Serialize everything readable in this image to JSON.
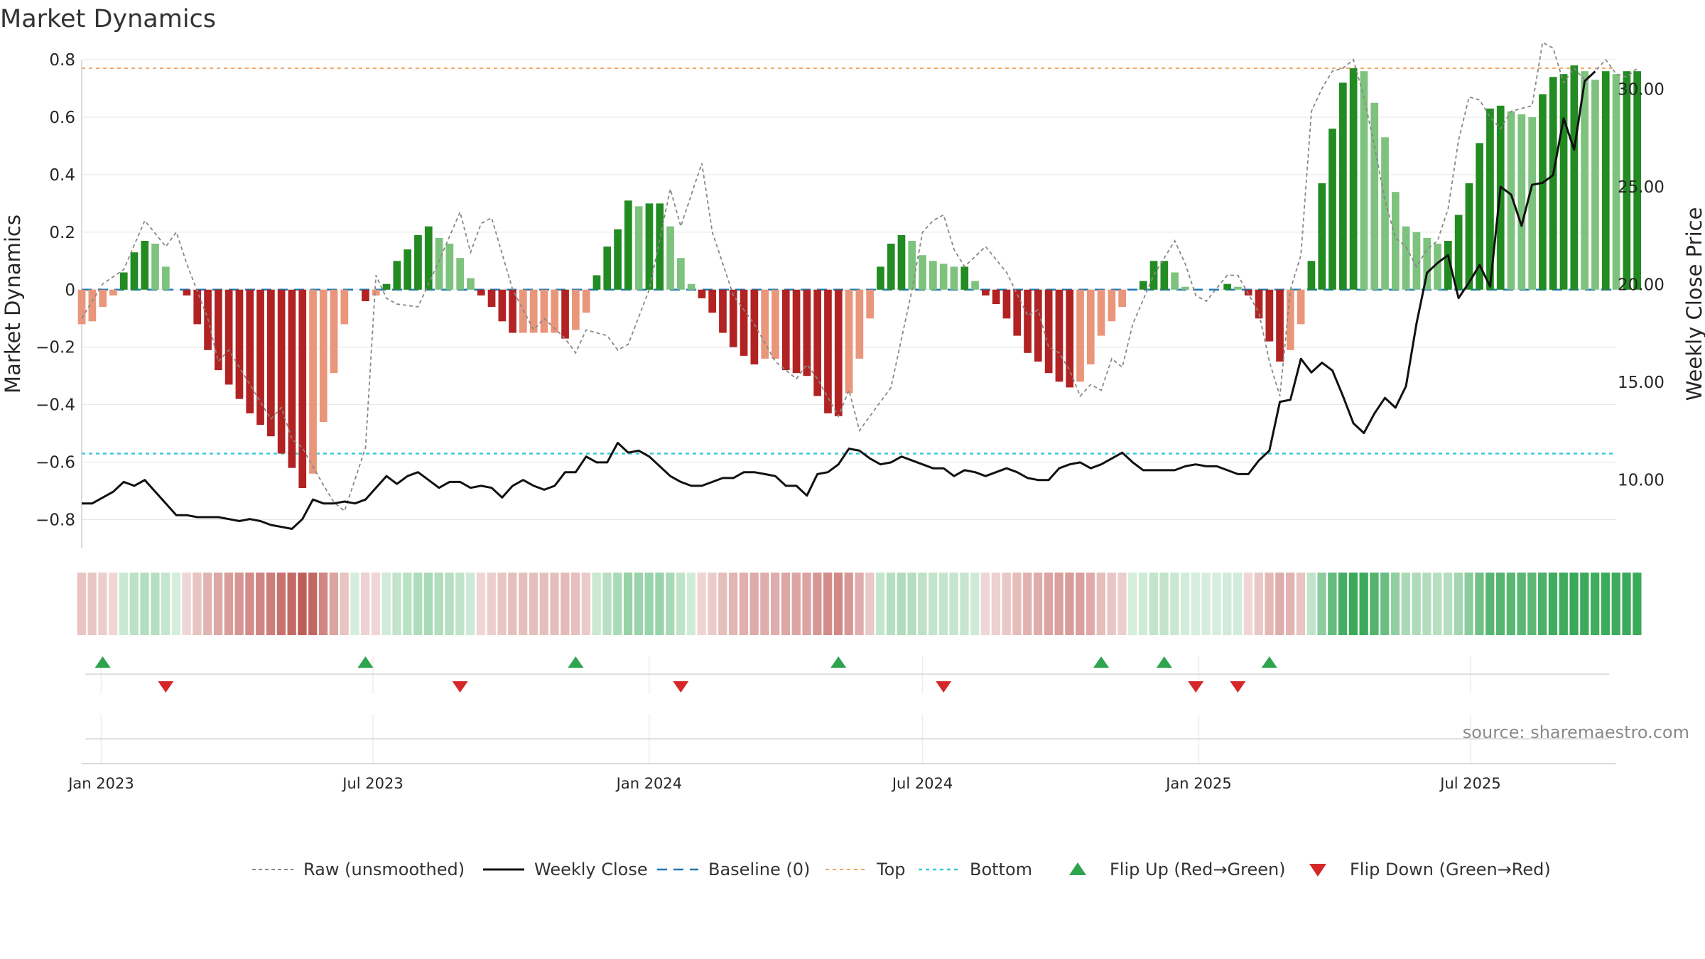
{
  "title": "Market Dynamics",
  "source": "source: sharemaestro.com",
  "chart_data": {
    "type": "bar",
    "title": "Market Dynamics",
    "ylabel_left": "Market Dynamics",
    "ylabel_right": "Weekly Close Price",
    "ylim_left": [
      -0.9,
      0.8
    ],
    "ylim_right": [
      6.5,
      31.5
    ],
    "y_ticks_left": [
      "0.8",
      "0.6",
      "0.4",
      "0.2",
      "0",
      "−0.2",
      "−0.4",
      "−0.6",
      "−0.8"
    ],
    "y_tick_values_left": [
      0.8,
      0.6,
      0.4,
      0.2,
      0,
      -0.2,
      -0.4,
      -0.6,
      -0.8
    ],
    "y_ticks_right": [
      "30.00",
      "25.00",
      "20.00",
      "15.00",
      "10.00"
    ],
    "y_tick_values_right": [
      30,
      25,
      20,
      15,
      10
    ],
    "x_start": "2022-12-19",
    "x_end": "2025-10-06",
    "x_ticks": [
      {
        "label": "Jan 2023",
        "date": "2023-01-01"
      },
      {
        "label": "Jul 2023",
        "date": "2023-07-01"
      },
      {
        "label": "Jan 2024",
        "date": "2024-01-01"
      },
      {
        "label": "Jul 2024",
        "date": "2024-07-01"
      },
      {
        "label": "Jan 2025",
        "date": "2025-01-01"
      },
      {
        "label": "Jul 2025",
        "date": "2025-07-01"
      }
    ],
    "reference_lines": {
      "baseline": 0,
      "top": 0.77,
      "bottom": -0.57
    },
    "colors": {
      "strong_green": "#228B22",
      "light_green": "#7DC27D",
      "strong_red": "#B22222",
      "light_red": "#E9967A",
      "raw": "#888888",
      "close": "#111111",
      "baseline": "#1f77b4",
      "top": "#F4A460",
      "bottom": "#3CC8D8",
      "flip_up": "#2EA44F",
      "flip_down": "#D62728"
    },
    "dynamics_anchors": [
      [
        0,
        -0.12
      ],
      [
        1,
        -0.11
      ],
      [
        2,
        -0.06
      ],
      [
        3,
        -0.02
      ],
      [
        4,
        0.06
      ],
      [
        5,
        0.13
      ],
      [
        6,
        0.17
      ],
      [
        7,
        0.16
      ],
      [
        8,
        0.08
      ],
      [
        9,
        0.0
      ],
      [
        10,
        -0.02
      ],
      [
        11,
        -0.12
      ],
      [
        12,
        -0.21
      ],
      [
        13,
        -0.28
      ],
      [
        14,
        -0.33
      ],
      [
        15,
        -0.38
      ],
      [
        16,
        -0.43
      ],
      [
        17,
        -0.47
      ],
      [
        18,
        -0.51
      ],
      [
        19,
        -0.57
      ],
      [
        20,
        -0.62
      ],
      [
        21,
        -0.69
      ],
      [
        22,
        -0.64
      ],
      [
        23,
        -0.46
      ],
      [
        24,
        -0.29
      ],
      [
        25,
        -0.12
      ],
      [
        26,
        0.0
      ],
      [
        27,
        -0.04
      ],
      [
        28,
        -0.02
      ],
      [
        29,
        0.02
      ],
      [
        30,
        0.1
      ],
      [
        31,
        0.14
      ],
      [
        32,
        0.19
      ],
      [
        33,
        0.22
      ],
      [
        34,
        0.18
      ],
      [
        35,
        0.16
      ],
      [
        36,
        0.11
      ],
      [
        37,
        0.04
      ],
      [
        38,
        -0.02
      ],
      [
        39,
        -0.06
      ],
      [
        40,
        -0.11
      ],
      [
        41,
        -0.15
      ],
      [
        42,
        -0.15
      ],
      [
        43,
        -0.15
      ],
      [
        44,
        -0.15
      ],
      [
        45,
        -0.15
      ],
      [
        46,
        -0.17
      ],
      [
        47,
        -0.14
      ],
      [
        48,
        -0.08
      ],
      [
        49,
        0.05
      ],
      [
        50,
        0.15
      ],
      [
        51,
        0.21
      ],
      [
        52,
        0.31
      ],
      [
        53,
        0.29
      ],
      [
        54,
        0.3
      ],
      [
        55,
        0.3
      ],
      [
        56,
        0.22
      ],
      [
        57,
        0.11
      ],
      [
        58,
        0.02
      ],
      [
        59,
        -0.03
      ],
      [
        60,
        -0.08
      ],
      [
        61,
        -0.15
      ],
      [
        62,
        -0.2
      ],
      [
        63,
        -0.23
      ],
      [
        64,
        -0.26
      ],
      [
        65,
        -0.24
      ],
      [
        66,
        -0.24
      ],
      [
        67,
        -0.28
      ],
      [
        68,
        -0.29
      ],
      [
        69,
        -0.3
      ],
      [
        70,
        -0.37
      ],
      [
        71,
        -0.43
      ],
      [
        72,
        -0.44
      ],
      [
        73,
        -0.36
      ],
      [
        74,
        -0.24
      ],
      [
        75,
        -0.1
      ],
      [
        76,
        0.08
      ],
      [
        77,
        0.16
      ],
      [
        78,
        0.19
      ],
      [
        79,
        0.17
      ],
      [
        80,
        0.12
      ],
      [
        81,
        0.1
      ],
      [
        82,
        0.09
      ],
      [
        83,
        0.08
      ],
      [
        84,
        0.08
      ],
      [
        85,
        0.03
      ],
      [
        86,
        -0.02
      ],
      [
        87,
        -0.05
      ],
      [
        88,
        -0.1
      ],
      [
        89,
        -0.16
      ],
      [
        90,
        -0.22
      ],
      [
        91,
        -0.25
      ],
      [
        92,
        -0.29
      ],
      [
        93,
        -0.32
      ],
      [
        94,
        -0.34
      ],
      [
        95,
        -0.32
      ],
      [
        96,
        -0.26
      ],
      [
        97,
        -0.16
      ],
      [
        98,
        -0.11
      ],
      [
        99,
        -0.06
      ],
      [
        100,
        0.0
      ],
      [
        101,
        0.03
      ],
      [
        102,
        0.1
      ],
      [
        103,
        0.1
      ],
      [
        104,
        0.06
      ],
      [
        105,
        0.01
      ],
      [
        106,
        0.0
      ],
      [
        107,
        0.0
      ],
      [
        108,
        0.0
      ],
      [
        109,
        0.02
      ],
      [
        110,
        0.01
      ],
      [
        111,
        -0.02
      ],
      [
        112,
        -0.1
      ],
      [
        113,
        -0.18
      ],
      [
        114,
        -0.25
      ],
      [
        115,
        -0.21
      ],
      [
        116,
        -0.12
      ],
      [
        117,
        0.1
      ],
      [
        118,
        0.37
      ],
      [
        119,
        0.56
      ],
      [
        120,
        0.72
      ],
      [
        121,
        0.77
      ],
      [
        122,
        0.76
      ],
      [
        123,
        0.65
      ],
      [
        124,
        0.53
      ],
      [
        125,
        0.34
      ],
      [
        126,
        0.22
      ],
      [
        127,
        0.2
      ],
      [
        128,
        0.18
      ],
      [
        129,
        0.16
      ],
      [
        130,
        0.17
      ],
      [
        131,
        0.26
      ],
      [
        132,
        0.37
      ],
      [
        133,
        0.51
      ],
      [
        134,
        0.63
      ],
      [
        135,
        0.64
      ],
      [
        136,
        0.62
      ],
      [
        137,
        0.61
      ],
      [
        138,
        0.6
      ],
      [
        139,
        0.68
      ],
      [
        140,
        0.74
      ],
      [
        141,
        0.75
      ],
      [
        142,
        0.78
      ],
      [
        143,
        0.76
      ],
      [
        144,
        0.73
      ],
      [
        145,
        0.76
      ],
      [
        146,
        0.75
      ],
      [
        147,
        0.76
      ],
      [
        148,
        0.76
      ]
    ],
    "raw_anchors": [
      [
        0,
        -0.1
      ],
      [
        2,
        0.02
      ],
      [
        4,
        0.07
      ],
      [
        6,
        0.24
      ],
      [
        8,
        0.15
      ],
      [
        9,
        0.2
      ],
      [
        10,
        0.09
      ],
      [
        12,
        -0.1
      ],
      [
        13,
        -0.25
      ],
      [
        14,
        -0.21
      ],
      [
        16,
        -0.33
      ],
      [
        18,
        -0.45
      ],
      [
        19,
        -0.41
      ],
      [
        20,
        -0.52
      ],
      [
        21,
        -0.55
      ],
      [
        23,
        -0.68
      ],
      [
        24,
        -0.74
      ],
      [
        25,
        -0.77
      ],
      [
        27,
        -0.55
      ],
      [
        28,
        0.05
      ],
      [
        29,
        -0.03
      ],
      [
        30,
        -0.05
      ],
      [
        32,
        -0.06
      ],
      [
        34,
        0.1
      ],
      [
        36,
        0.27
      ],
      [
        37,
        0.13
      ],
      [
        38,
        0.23
      ],
      [
        39,
        0.25
      ],
      [
        41,
        0.0
      ],
      [
        43,
        -0.14
      ],
      [
        44,
        -0.1
      ],
      [
        46,
        -0.17
      ],
      [
        47,
        -0.22
      ],
      [
        48,
        -0.14
      ],
      [
        50,
        -0.16
      ],
      [
        51,
        -0.21
      ],
      [
        52,
        -0.19
      ],
      [
        54,
        0.0
      ],
      [
        56,
        0.35
      ],
      [
        57,
        0.22
      ],
      [
        59,
        0.44
      ],
      [
        60,
        0.2
      ],
      [
        62,
        -0.02
      ],
      [
        64,
        -0.12
      ],
      [
        66,
        -0.25
      ],
      [
        68,
        -0.31
      ],
      [
        69,
        -0.26
      ],
      [
        70,
        -0.31
      ],
      [
        72,
        -0.44
      ],
      [
        73,
        -0.35
      ],
      [
        74,
        -0.49
      ],
      [
        75,
        -0.44
      ],
      [
        77,
        -0.34
      ],
      [
        79,
        0.0
      ],
      [
        80,
        0.2
      ],
      [
        81,
        0.24
      ],
      [
        82,
        0.26
      ],
      [
        83,
        0.14
      ],
      [
        84,
        0.08
      ],
      [
        86,
        0.15
      ],
      [
        88,
        0.06
      ],
      [
        90,
        -0.09
      ],
      [
        91,
        -0.07
      ],
      [
        92,
        -0.2
      ],
      [
        93,
        -0.22
      ],
      [
        94,
        -0.28
      ],
      [
        95,
        -0.37
      ],
      [
        96,
        -0.33
      ],
      [
        97,
        -0.35
      ],
      [
        98,
        -0.24
      ],
      [
        99,
        -0.27
      ],
      [
        100,
        -0.12
      ],
      [
        102,
        0.05
      ],
      [
        104,
        0.17
      ],
      [
        105,
        0.09
      ],
      [
        106,
        -0.02
      ],
      [
        107,
        -0.04
      ],
      [
        109,
        0.05
      ],
      [
        110,
        0.05
      ],
      [
        112,
        -0.08
      ],
      [
        113,
        -0.25
      ],
      [
        114,
        -0.37
      ],
      [
        115,
        0.0
      ],
      [
        116,
        0.12
      ],
      [
        117,
        0.62
      ],
      [
        118,
        0.7
      ],
      [
        119,
        0.76
      ],
      [
        120,
        0.77
      ],
      [
        121,
        0.8
      ],
      [
        122,
        0.67
      ],
      [
        123,
        0.5
      ],
      [
        124,
        0.31
      ],
      [
        125,
        0.18
      ],
      [
        126,
        0.15
      ],
      [
        127,
        0.08
      ],
      [
        128,
        0.14
      ],
      [
        129,
        0.17
      ],
      [
        130,
        0.28
      ],
      [
        131,
        0.52
      ],
      [
        132,
        0.67
      ],
      [
        133,
        0.66
      ],
      [
        134,
        0.6
      ],
      [
        135,
        0.56
      ],
      [
        136,
        0.62
      ],
      [
        137,
        0.63
      ],
      [
        138,
        0.64
      ],
      [
        139,
        0.86
      ],
      [
        140,
        0.84
      ],
      [
        141,
        0.72
      ],
      [
        142,
        0.77
      ],
      [
        143,
        0.73
      ],
      [
        144,
        0.76
      ],
      [
        145,
        0.8
      ],
      [
        146,
        0.75
      ],
      [
        147,
        0.74
      ],
      [
        148,
        0.77
      ]
    ],
    "close_anchors": [
      [
        0,
        8.8
      ],
      [
        1,
        8.8
      ],
      [
        2,
        9.1
      ],
      [
        3,
        9.4
      ],
      [
        4,
        9.9
      ],
      [
        5,
        9.7
      ],
      [
        6,
        10.0
      ],
      [
        7,
        9.4
      ],
      [
        8,
        8.8
      ],
      [
        9,
        8.2
      ],
      [
        10,
        8.2
      ],
      [
        11,
        8.1
      ],
      [
        12,
        8.1
      ],
      [
        13,
        8.1
      ],
      [
        14,
        8.0
      ],
      [
        15,
        7.9
      ],
      [
        16,
        8.0
      ],
      [
        17,
        7.9
      ],
      [
        18,
        7.7
      ],
      [
        19,
        7.6
      ],
      [
        20,
        7.5
      ],
      [
        21,
        8.0
      ],
      [
        22,
        9.0
      ],
      [
        23,
        8.8
      ],
      [
        24,
        8.8
      ],
      [
        25,
        8.9
      ],
      [
        26,
        8.8
      ],
      [
        27,
        9.0
      ],
      [
        28,
        9.6
      ],
      [
        29,
        10.2
      ],
      [
        30,
        9.8
      ],
      [
        31,
        10.2
      ],
      [
        32,
        10.4
      ],
      [
        33,
        10.0
      ],
      [
        34,
        9.6
      ],
      [
        35,
        9.9
      ],
      [
        36,
        9.9
      ],
      [
        37,
        9.6
      ],
      [
        38,
        9.7
      ],
      [
        39,
        9.6
      ],
      [
        40,
        9.1
      ],
      [
        41,
        9.7
      ],
      [
        42,
        10.0
      ],
      [
        43,
        9.7
      ],
      [
        44,
        9.5
      ],
      [
        45,
        9.7
      ],
      [
        46,
        10.4
      ],
      [
        47,
        10.4
      ],
      [
        48,
        11.2
      ],
      [
        49,
        10.9
      ],
      [
        50,
        10.9
      ],
      [
        51,
        11.9
      ],
      [
        52,
        11.4
      ],
      [
        53,
        11.5
      ],
      [
        54,
        11.2
      ],
      [
        55,
        10.7
      ],
      [
        56,
        10.2
      ],
      [
        57,
        9.9
      ],
      [
        58,
        9.7
      ],
      [
        59,
        9.7
      ],
      [
        60,
        9.9
      ],
      [
        61,
        10.1
      ],
      [
        62,
        10.1
      ],
      [
        63,
        10.4
      ],
      [
        64,
        10.4
      ],
      [
        65,
        10.3
      ],
      [
        66,
        10.2
      ],
      [
        67,
        9.7
      ],
      [
        68,
        9.7
      ],
      [
        69,
        9.2
      ],
      [
        70,
        10.3
      ],
      [
        71,
        10.4
      ],
      [
        72,
        10.8
      ],
      [
        73,
        11.6
      ],
      [
        74,
        11.5
      ],
      [
        75,
        11.1
      ],
      [
        76,
        10.8
      ],
      [
        77,
        10.9
      ],
      [
        78,
        11.2
      ],
      [
        79,
        11.0
      ],
      [
        80,
        10.8
      ],
      [
        81,
        10.6
      ],
      [
        82,
        10.6
      ],
      [
        83,
        10.2
      ],
      [
        84,
        10.5
      ],
      [
        85,
        10.4
      ],
      [
        86,
        10.2
      ],
      [
        87,
        10.4
      ],
      [
        88,
        10.6
      ],
      [
        89,
        10.4
      ],
      [
        90,
        10.1
      ],
      [
        91,
        10.0
      ],
      [
        92,
        10.0
      ],
      [
        93,
        10.6
      ],
      [
        94,
        10.8
      ],
      [
        95,
        10.9
      ],
      [
        96,
        10.6
      ],
      [
        97,
        10.8
      ],
      [
        98,
        11.1
      ],
      [
        99,
        11.4
      ],
      [
        100,
        10.9
      ],
      [
        101,
        10.5
      ],
      [
        102,
        10.5
      ],
      [
        103,
        10.5
      ],
      [
        104,
        10.5
      ],
      [
        105,
        10.7
      ],
      [
        106,
        10.8
      ],
      [
        107,
        10.7
      ],
      [
        108,
        10.7
      ],
      [
        109,
        10.5
      ],
      [
        110,
        10.3
      ],
      [
        111,
        10.3
      ],
      [
        112,
        11.0
      ],
      [
        113,
        11.5
      ],
      [
        114,
        14.0
      ],
      [
        115,
        14.1
      ],
      [
        116,
        16.2
      ],
      [
        117,
        15.5
      ],
      [
        118,
        16.0
      ],
      [
        119,
        15.6
      ],
      [
        120,
        14.3
      ],
      [
        121,
        12.9
      ],
      [
        122,
        12.4
      ],
      [
        123,
        13.4
      ],
      [
        124,
        14.2
      ],
      [
        125,
        13.7
      ],
      [
        126,
        14.8
      ],
      [
        127,
        18.0
      ],
      [
        128,
        20.6
      ],
      [
        129,
        21.1
      ],
      [
        130,
        21.5
      ],
      [
        131,
        19.3
      ],
      [
        132,
        20.1
      ],
      [
        133,
        21.0
      ],
      [
        134,
        19.9
      ],
      [
        135,
        25.0
      ],
      [
        136,
        24.6
      ],
      [
        137,
        23.0
      ],
      [
        138,
        25.1
      ],
      [
        139,
        25.2
      ],
      [
        140,
        25.6
      ],
      [
        141,
        28.5
      ],
      [
        142,
        26.9
      ],
      [
        143,
        30.4
      ],
      [
        144,
        30.9
      ]
    ],
    "bars_end_index": 148,
    "close_end_index": 144,
    "flips_up_weeks": [
      2,
      27,
      47,
      72,
      97,
      103,
      113
    ],
    "flips_down_weeks": [
      8,
      36,
      57,
      82,
      106,
      110
    ]
  },
  "legend": [
    {
      "label": "Raw (unsmoothed)",
      "style": "dash-gray"
    },
    {
      "label": "Weekly Close",
      "style": "solid-black"
    },
    {
      "label": "Baseline (0)",
      "style": "dash-blue"
    },
    {
      "label": "Top",
      "style": "dot-orange"
    },
    {
      "label": "Bottom",
      "style": "dot-cyan"
    },
    {
      "label": "Flip Up (Red→Green)",
      "style": "triangle-up-green"
    },
    {
      "label": "Flip Down (Green→Red)",
      "style": "triangle-down-red"
    }
  ]
}
